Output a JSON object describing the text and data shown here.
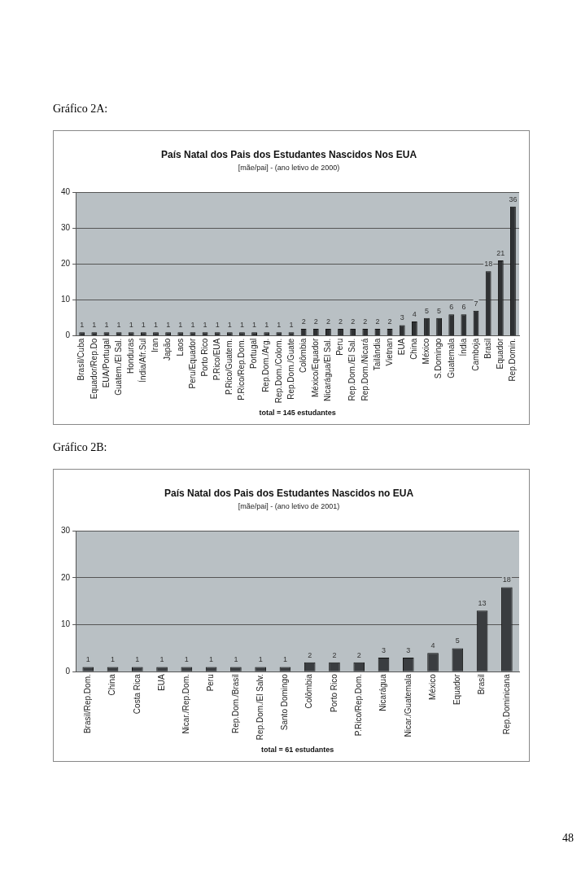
{
  "chart_data": [
    {
      "type": "bar",
      "title": "País Natal dos Pais dos Estudantes Nascidos Nos EUA",
      "subtitle": "[mãe/pai] - (ano letivo de 2000)",
      "xlabel": "total = 145 estudantes",
      "annotations": [
        "Gráfico 2A:"
      ],
      "categories": [
        "Brasil/Cuba",
        "Equador/Rep.Do",
        "EUA/Portugal",
        "Guatem./El Sal.",
        "Honduras",
        "Índia/Afr.Sul",
        "Iran",
        "Japão",
        "Laos",
        "Peru/Equador",
        "Porto Rico",
        "P.Rico/EUA",
        "P.Rico/Guatem.",
        "P.Rico/Rep.Dom.",
        "Portugal",
        "Rep.Dom./Arg.",
        "Rep.Dom./Colom.",
        "Rep.Dom./Guate",
        "Colômbia",
        "México/Equador",
        "Nicarágua/El Sal.",
        "Peru",
        "Rep.Dom./El Sal.",
        "Rep.Dom./Nicará",
        "Tailândia",
        "Vietnan",
        "EUA",
        "China",
        "México",
        "S.Domingo",
        "Guatemala",
        "Índia",
        "Camboja",
        "Brasil",
        "Equador",
        "Rep.Domin."
      ],
      "values": [
        1,
        1,
        1,
        1,
        1,
        1,
        1,
        1,
        1,
        1,
        1,
        1,
        1,
        1,
        1,
        1,
        1,
        1,
        2,
        2,
        2,
        2,
        2,
        2,
        2,
        2,
        3,
        4,
        5,
        5,
        6,
        6,
        7,
        18,
        21,
        36
      ],
      "color": "#2f3133",
      "ylim": [
        0,
        40
      ],
      "yticks": [
        0,
        10,
        20,
        30,
        40
      ],
      "grid": "y",
      "legend": false,
      "data_labels": true
    },
    {
      "type": "bar",
      "title": "País Natal dos Pais dos Estudantes Nascidos no EUA",
      "subtitle": "[mãe/pai] - (ano letivo de 2001)",
      "xlabel": "total = 61 estudantes",
      "annotations": [
        "Gráfico 2B:",
        "48"
      ],
      "categories": [
        "Brasil/Rep.Dom.",
        "China",
        "Costa Rica",
        "EUA",
        "Nicar./Rep.Dom.",
        "Peru",
        "Rep.Dom./Brasil",
        "Rep.Dom./El Salv.",
        "Santo Domingo",
        "Colômbia",
        "Porto Rico",
        "P.Rico/Rep.Dom.",
        "Nicarágua",
        "Nicar./Guatemala",
        "México",
        "Equador",
        "Brasil",
        "Rep.Dominicana"
      ],
      "values": [
        1,
        1,
        1,
        1,
        1,
        1,
        1,
        1,
        1,
        2,
        2,
        2,
        3,
        3,
        4,
        5,
        13,
        18
      ],
      "color": "#3a3d40",
      "ylim": [
        0,
        30
      ],
      "yticks": [
        0,
        10,
        20,
        30
      ],
      "grid": "y",
      "legend": false,
      "data_labels": true
    }
  ]
}
